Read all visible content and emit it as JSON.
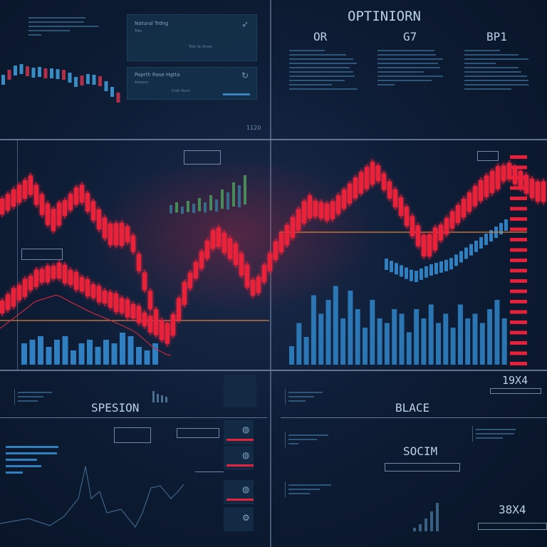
{
  "top": {
    "card1": {
      "title": "Natural Trdng",
      "sub": "Trds",
      "note": "Trdy Sc Arset"
    },
    "card2": {
      "title": "Paprth Rase Hgtta",
      "sub": "Ampery",
      "note": "Crstr Rsch"
    },
    "corner_label": "1120",
    "options_title": "OPTINIORN",
    "columns": [
      "OR",
      "G7",
      "BP1"
    ]
  },
  "bottom": {
    "left_title": "SPESION",
    "right_title": "BLACE",
    "center_title": "SOCIM",
    "stat1": "19X4",
    "stat2": "38X4"
  },
  "colors": {
    "background": "#0a1729",
    "bearish": "#e8203a",
    "volume": "#2f7fc1",
    "threshold": "#e0823c"
  },
  "chart_data": {
    "type": "candlestick",
    "red_series_upper": [
      70,
      80,
      63,
      77,
      57,
      57,
      13,
      10,
      33,
      57,
      47,
      30,
      50,
      70,
      67,
      80,
      87,
      70,
      50,
      63,
      77,
      87,
      77
    ],
    "red_series_upper_x": [
      0,
      40,
      70,
      110,
      150,
      180,
      220,
      235,
      260,
      300,
      330,
      355,
      385,
      430,
      460,
      500,
      525,
      560,
      595,
      630,
      670,
      710,
      750
    ],
    "red_series_lower": [
      23,
      37,
      40,
      30,
      20,
      13,
      10
    ],
    "red_series_lower_x": [
      0,
      50,
      80,
      130,
      190,
      215,
      235
    ],
    "blue_series": [
      43,
      37,
      40,
      43,
      50,
      57,
      63
    ],
    "blue_series_x": [
      540,
      580,
      600,
      630,
      660,
      690,
      715
    ],
    "volume_left": [
      30,
      35,
      40,
      25,
      35,
      40,
      20,
      30,
      35,
      25,
      35,
      30,
      45,
      40,
      25,
      20,
      30
    ],
    "volume_right": [
      20,
      45,
      30,
      75,
      55,
      70,
      85,
      50,
      80,
      60,
      40,
      70,
      50,
      45,
      60,
      55,
      35,
      60,
      50,
      65,
      45,
      55,
      40,
      65,
      50,
      55,
      45,
      60,
      70,
      50
    ]
  }
}
